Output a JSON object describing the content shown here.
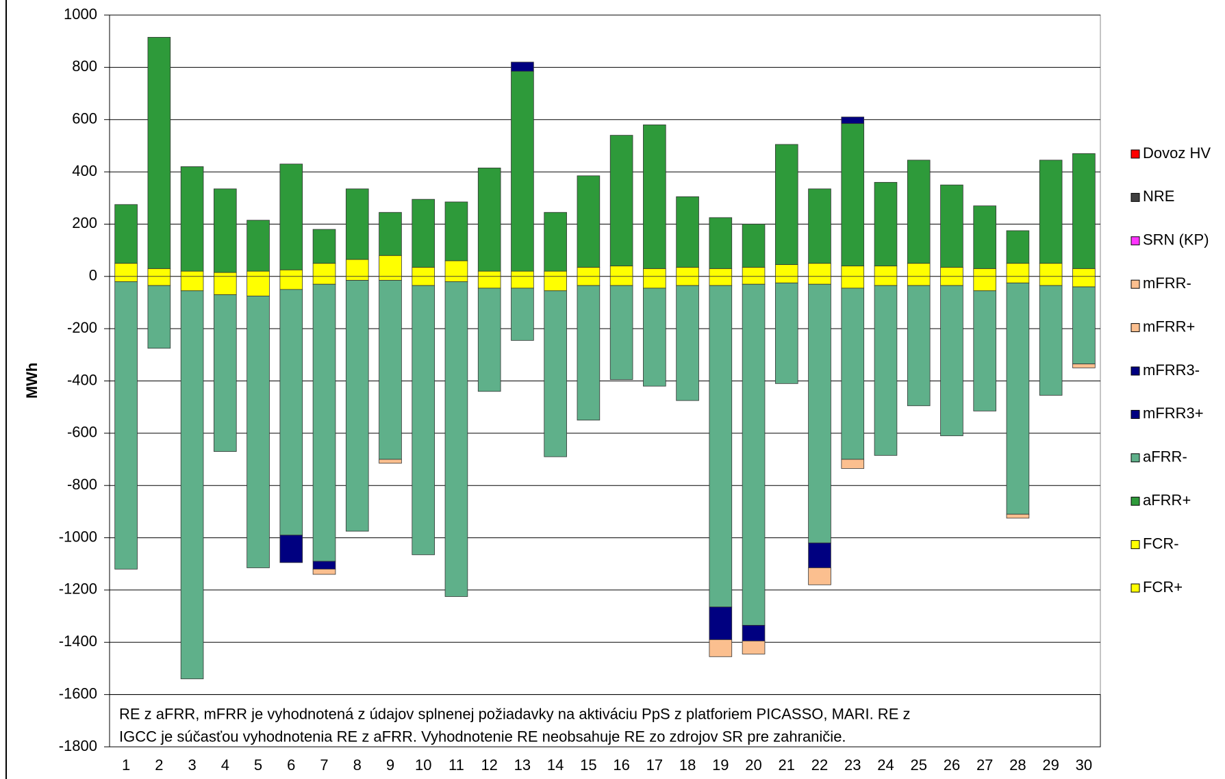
{
  "chart_data": {
    "type": "stacked-bar",
    "y_label": "MWh",
    "categories": [
      "1",
      "2",
      "3",
      "4",
      "5",
      "6",
      "7",
      "8",
      "9",
      "10",
      "11",
      "12",
      "13",
      "14",
      "15",
      "16",
      "17",
      "18",
      "19",
      "20",
      "21",
      "22",
      "23",
      "24",
      "25",
      "26",
      "27",
      "28",
      "29",
      "30"
    ],
    "ylim": [
      -1800,
      1000
    ],
    "yticks": [
      -1800,
      -1600,
      -1400,
      -1200,
      -1000,
      -800,
      -600,
      -400,
      -200,
      0,
      200,
      400,
      600,
      800,
      1000
    ],
    "grid": true,
    "annotation": [
      "RE z aFRR, mFRR je vyhodnotená z údajov splnenej požiadavky na aktiváciu PpS z platforiem PICASSO, MARI. RE z",
      "IGCC je súčasťou vyhodnotenia RE z aFRR. Vyhodnotenie RE neobsahuje RE zo zdrojov SR pre zahraničie."
    ],
    "series": [
      {
        "name": "Dovoz HV",
        "color": "#ff0000",
        "values": [
          0,
          0,
          0,
          0,
          0,
          0,
          0,
          0,
          0,
          0,
          0,
          0,
          0,
          0,
          0,
          0,
          0,
          0,
          0,
          0,
          0,
          0,
          0,
          0,
          0,
          0,
          0,
          0,
          0,
          0
        ]
      },
      {
        "name": "NRE",
        "color": "#404040",
        "values": [
          0,
          0,
          0,
          0,
          0,
          0,
          0,
          0,
          0,
          0,
          0,
          0,
          0,
          0,
          0,
          0,
          0,
          0,
          0,
          0,
          0,
          0,
          0,
          0,
          0,
          0,
          0,
          0,
          0,
          0
        ]
      },
      {
        "name": "SRN (KP)",
        "color": "#ff33ff",
        "values": [
          0,
          0,
          0,
          0,
          0,
          0,
          0,
          0,
          0,
          0,
          0,
          0,
          0,
          0,
          0,
          0,
          0,
          0,
          0,
          0,
          0,
          0,
          0,
          0,
          0,
          0,
          0,
          0,
          0,
          0
        ]
      },
      {
        "name": "mFRR-",
        "color": "#fbbf8f",
        "values": [
          0,
          0,
          0,
          0,
          0,
          0,
          -20,
          0,
          -15,
          0,
          0,
          0,
          0,
          0,
          0,
          0,
          0,
          0,
          -65,
          -50,
          0,
          -65,
          -35,
          0,
          0,
          0,
          0,
          -15,
          0,
          -15
        ]
      },
      {
        "name": "mFRR+",
        "color": "#fbbf8f",
        "values": [
          0,
          0,
          0,
          0,
          0,
          0,
          0,
          0,
          0,
          0,
          0,
          0,
          0,
          0,
          0,
          0,
          0,
          0,
          0,
          0,
          0,
          0,
          0,
          0,
          0,
          0,
          0,
          0,
          0,
          0
        ]
      },
      {
        "name": "mFRR3-",
        "color": "#000080",
        "values": [
          0,
          0,
          0,
          0,
          0,
          -105,
          -30,
          0,
          0,
          0,
          0,
          0,
          0,
          0,
          0,
          0,
          0,
          0,
          -125,
          -60,
          0,
          -95,
          0,
          0,
          0,
          0,
          0,
          0,
          0,
          0
        ]
      },
      {
        "name": "mFRR3+",
        "color": "#000080",
        "values": [
          0,
          0,
          0,
          0,
          0,
          0,
          0,
          0,
          0,
          0,
          0,
          0,
          35,
          0,
          0,
          0,
          0,
          0,
          0,
          0,
          0,
          0,
          25,
          0,
          0,
          0,
          0,
          0,
          0,
          0
        ]
      },
      {
        "name": "aFRR-",
        "color": "#5fb08a",
        "values": [
          -1100,
          -240,
          -1485,
          -600,
          -1040,
          -940,
          -1060,
          -960,
          -685,
          -1030,
          -1205,
          -395,
          -200,
          -635,
          -515,
          -360,
          -375,
          -440,
          -1230,
          -1305,
          -385,
          -990,
          -655,
          -650,
          -460,
          -575,
          -460,
          -885,
          -420,
          -295
        ]
      },
      {
        "name": "aFRR+",
        "color": "#2e9a3a",
        "values": [
          225,
          885,
          400,
          320,
          195,
          405,
          130,
          270,
          165,
          260,
          225,
          395,
          765,
          225,
          350,
          500,
          550,
          270,
          195,
          165,
          460,
          285,
          545,
          320,
          395,
          315,
          240,
          125,
          395,
          440
        ]
      },
      {
        "name": "FCR-",
        "color": "#ffff00",
        "values": [
          -20,
          -35,
          -55,
          -70,
          -75,
          -50,
          -30,
          -15,
          -15,
          -35,
          -20,
          -45,
          -45,
          -55,
          -35,
          -35,
          -45,
          -35,
          -35,
          -30,
          -25,
          -30,
          -45,
          -35,
          -35,
          -35,
          -55,
          -25,
          -35,
          -40
        ]
      },
      {
        "name": "FCR+",
        "color": "#ffff00",
        "values": [
          50,
          30,
          20,
          15,
          20,
          25,
          50,
          65,
          80,
          35,
          60,
          20,
          20,
          20,
          35,
          40,
          30,
          35,
          30,
          35,
          45,
          50,
          40,
          40,
          50,
          35,
          30,
          50,
          50,
          30
        ]
      }
    ]
  }
}
